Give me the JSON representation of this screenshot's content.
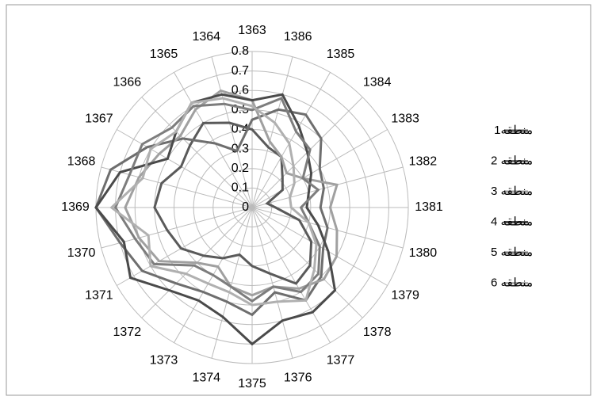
{
  "chart_data": {
    "type": "radar",
    "categories": [
      "1363",
      "1386",
      "1385",
      "1384",
      "1383",
      "1382",
      "1381",
      "1380",
      "1379",
      "1378",
      "1377",
      "1376",
      "1375",
      "1374",
      "1373",
      "1372",
      "1371",
      "1370",
      "1369",
      "1368",
      "1367",
      "1366",
      "1365",
      "1364"
    ],
    "ylim": [
      0,
      0.8
    ],
    "yticks": [
      0,
      0.1,
      0.2,
      0.3,
      0.4,
      0.5,
      0.6,
      0.7,
      0.8
    ],
    "grid": true,
    "legend": "right",
    "series": [
      {
        "name": "منطقه1",
        "color": "#5a5a5a",
        "values": [
          0.4,
          0.32,
          0.3,
          0.22,
          0.18,
          0.08,
          0.12,
          0.25,
          0.35,
          0.42,
          0.45,
          0.35,
          0.3,
          0.25,
          0.3,
          0.35,
          0.42,
          0.45,
          0.5,
          0.48,
          0.42,
          0.45,
          0.5,
          0.45
        ]
      },
      {
        "name": "منطقه 2",
        "color": "#6e6e6e",
        "values": [
          0.45,
          0.52,
          0.55,
          0.5,
          0.4,
          0.38,
          0.35,
          0.4,
          0.42,
          0.5,
          0.55,
          0.45,
          0.55,
          0.5,
          0.5,
          0.55,
          0.65,
          0.7,
          0.8,
          0.75,
          0.62,
          0.5,
          0.38,
          0.3
        ]
      },
      {
        "name": "منطقه 3",
        "color": "#a0a0a0",
        "values": [
          0.55,
          0.35,
          0.3,
          0.25,
          0.3,
          0.45,
          0.4,
          0.45,
          0.5,
          0.52,
          0.48,
          0.42,
          0.45,
          0.42,
          0.35,
          0.4,
          0.55,
          0.6,
          0.65,
          0.6,
          0.55,
          0.52,
          0.58,
          0.62
        ]
      },
      {
        "name": "منطقه 4",
        "color": "#4a4a4a",
        "values": [
          0.55,
          0.6,
          0.48,
          0.4,
          0.35,
          0.3,
          0.28,
          0.35,
          0.45,
          0.6,
          0.62,
          0.6,
          0.7,
          0.58,
          0.55,
          0.6,
          0.72,
          0.68,
          0.8,
          0.7,
          0.5,
          0.55,
          0.62,
          0.6
        ]
      },
      {
        "name": "منطقه 5",
        "color": "#7d7d7d",
        "values": [
          0.5,
          0.58,
          0.45,
          0.42,
          0.3,
          0.35,
          0.25,
          0.3,
          0.4,
          0.48,
          0.5,
          0.42,
          0.48,
          0.42,
          0.4,
          0.42,
          0.58,
          0.62,
          0.7,
          0.65,
          0.65,
          0.58,
          0.6,
          0.55
        ]
      },
      {
        "name": "منطقه 6",
        "color": "#b0b0b0",
        "values": [
          0.52,
          0.45,
          0.38,
          0.3,
          0.25,
          0.2,
          0.2,
          0.3,
          0.38,
          0.45,
          0.55,
          0.5,
          0.5,
          0.45,
          0.45,
          0.48,
          0.6,
          0.55,
          0.72,
          0.58,
          0.6,
          0.55,
          0.62,
          0.58
        ]
      }
    ]
  }
}
